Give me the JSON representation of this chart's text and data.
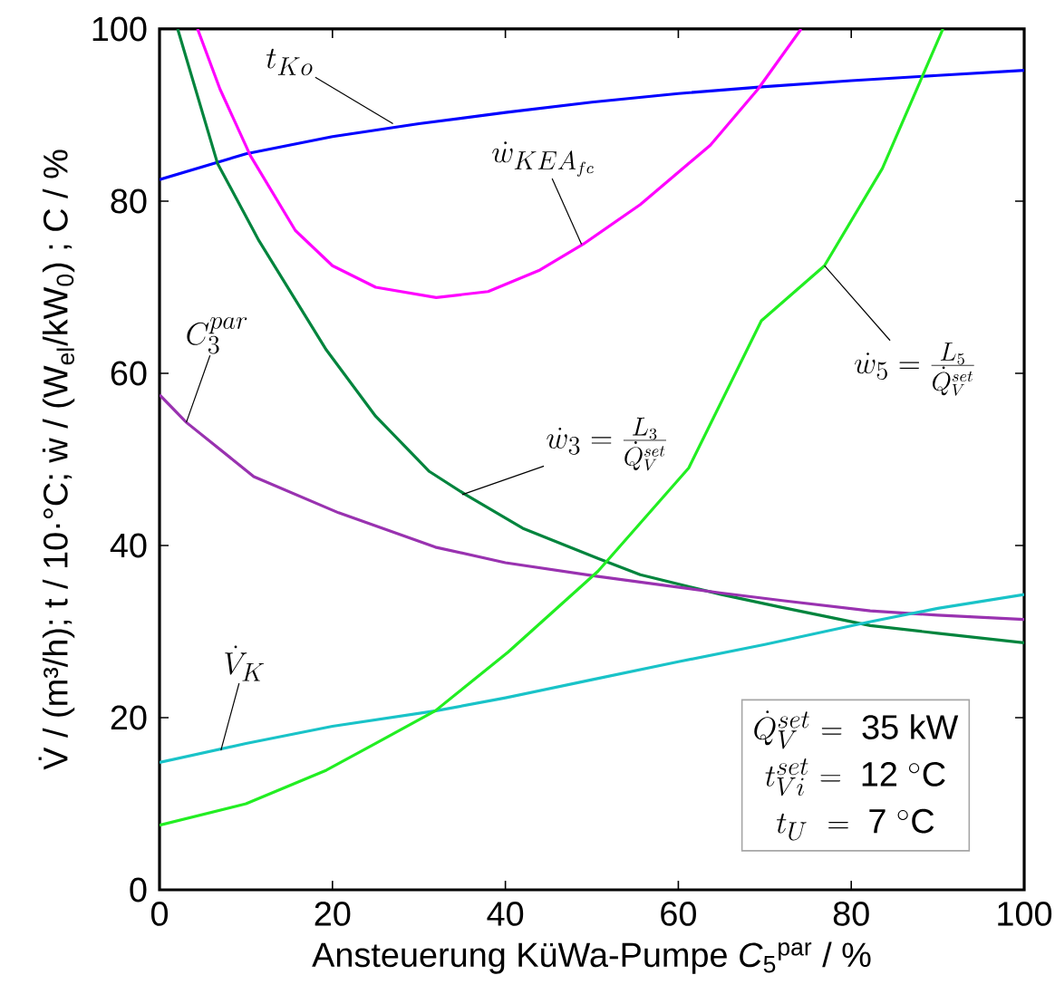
{
  "chart_data": {
    "type": "line",
    "xlabel": "Ansteuerung KüWa-Pumpe *C*$_{5}$$^{par}$ /  %",
    "ylabel": "V̇ / (m³/h); t / 10·°C; ẇ / (W$_{el}$/kW$_{0}$) ; C / %",
    "xlim": [
      0,
      100
    ],
    "ylim": [
      0,
      100
    ],
    "xticks": [
      0,
      20,
      40,
      60,
      80,
      100
    ],
    "yticks": [
      0,
      20,
      40,
      60,
      80,
      100
    ],
    "marker": "none",
    "line_style": "solid",
    "series": [
      {
        "color": "#0000ff",
        "x": [
          0,
          10,
          20,
          30,
          40,
          50,
          60,
          70,
          80,
          90,
          100
        ],
        "values": [
          82.5,
          85.5,
          87.5,
          89,
          90.3,
          91.5,
          92.5,
          93.3,
          94,
          94.6,
          95.2
        ]
      },
      {
        "color": "#ff00ff",
        "x": [
          4.4,
          7,
          10.5,
          15.7,
          20,
          25,
          32,
          38,
          44,
          49,
          55.6,
          63.7,
          69.2,
          74.2
        ],
        "values": [
          100,
          93,
          85.3,
          76.6,
          72.5,
          70,
          68.8,
          69.5,
          72,
          75,
          79.6,
          86.5,
          93,
          100
        ]
      },
      {
        "color": "#00843d",
        "x": [
          2.1,
          6.7,
          11.5,
          19.3,
          25,
          31.2,
          35.4,
          42,
          50.7,
          55.6,
          65,
          72,
          82.2,
          90,
          100
        ],
        "values": [
          100,
          84.4,
          75.4,
          62.7,
          55,
          48.6,
          45.9,
          42,
          38.5,
          36.6,
          34.3,
          32.8,
          30.7,
          29.8,
          28.7
        ]
      },
      {
        "color": "#9932b0",
        "x": [
          0,
          3.1,
          10.9,
          20.7,
          31.9,
          40,
          50.7,
          64.8,
          72,
          82.2,
          90,
          100
        ],
        "values": [
          57.5,
          54.3,
          48,
          43.8,
          39.8,
          38,
          36.4,
          34.5,
          33.6,
          32.4,
          31.9,
          31.4
        ]
      },
      {
        "color": "#19c3c8",
        "x": [
          0,
          10,
          20,
          32,
          40,
          50,
          60,
          70,
          82,
          90,
          100
        ],
        "values": [
          14.8,
          17,
          19,
          20.8,
          22.3,
          24.4,
          26.5,
          28.5,
          31.1,
          32.7,
          34.3
        ]
      },
      {
        "color": "#22ee22",
        "x": [
          0,
          10,
          19.3,
          25,
          31.9,
          40.3,
          50.7,
          61.2,
          69.6,
          76.9,
          83.6,
          90.6
        ],
        "values": [
          7.5,
          10,
          13.9,
          17,
          20.8,
          27.6,
          37,
          49,
          66.1,
          72.5,
          83.8,
          100
        ]
      }
    ],
    "annotations": [
      {
        "text": "t_{Ko}",
        "x": 27,
        "y": 89
      },
      {
        "text": "\\dot{w}_{KEA_{fc}}",
        "x": 48.8,
        "y": 75
      },
      {
        "text": "\\dot{w}_3 = \\frac{L_3}{\\dot{Q}_V^{set}}",
        "x": 35,
        "y": 45.9
      },
      {
        "text": "C_3^{par}",
        "x": 3.1,
        "y": 54.3
      },
      {
        "text": "\\dot{V}_K",
        "x": 7.1,
        "y": 16.2
      },
      {
        "text": "\\dot{w}_5 = \\frac{L_5}{\\dot{Q}_V^{set}}",
        "x": 76.9,
        "y": 72.5
      },
      "\\dot{Q}_V^{set}\\ \\mathrm{=\\ 35\\ kW}",
      "t_{Vi}^{set}\\ \\mathrm{=\\ 12\\ {}^{\\circ}C}",
      "t_U\\ \\ \\mathrm{=\\ 7\\ {}^{\\circ}C}"
    ]
  }
}
